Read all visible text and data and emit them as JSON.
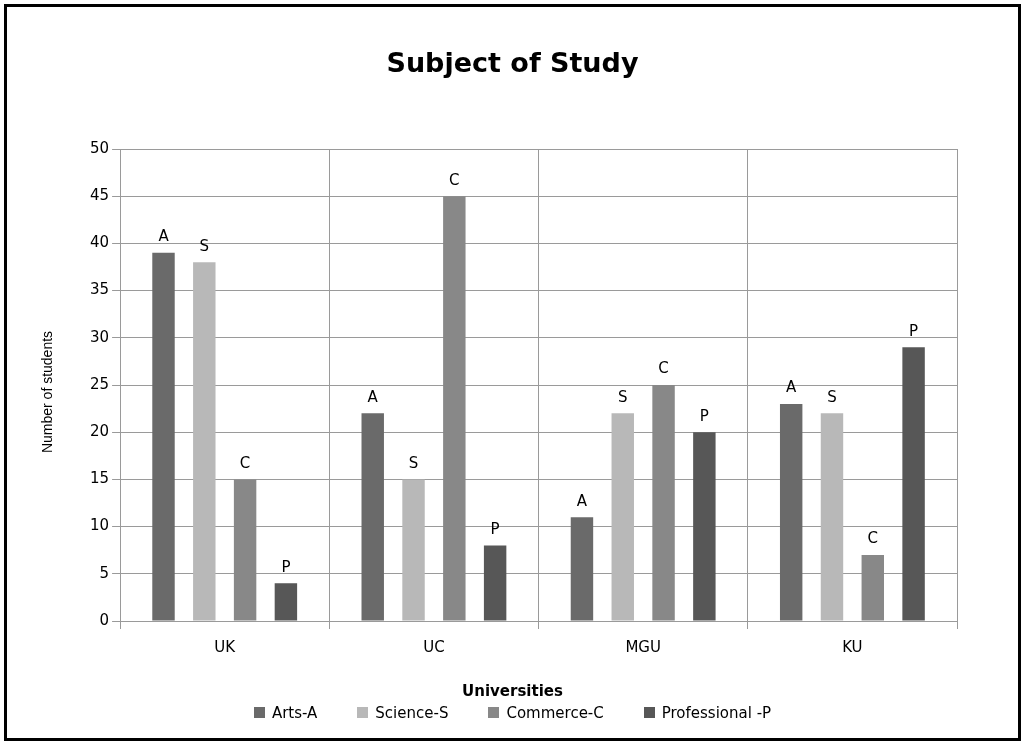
{
  "chart_data": {
    "type": "bar",
    "title": "Subject of Study",
    "xlabel": "Universities",
    "ylabel": "Number of students",
    "categories": [
      "UK",
      "UC",
      "MGU",
      "KU"
    ],
    "series": [
      {
        "name": "Arts-A",
        "color": "#6a6a6a",
        "values": [
          39,
          22,
          11,
          23
        ],
        "value_labels": [
          "A",
          "A",
          "A",
          "A"
        ]
      },
      {
        "name": "Science-S",
        "color": "#b8b8b8",
        "values": [
          38,
          15,
          22,
          22
        ],
        "value_labels": [
          "S",
          "S",
          "S",
          "S"
        ]
      },
      {
        "name": "Commerce-C",
        "color": "#888888",
        "values": [
          15,
          45,
          25,
          7
        ],
        "value_labels": [
          "C",
          "C",
          "C",
          "C"
        ]
      },
      {
        "name": "Professional -P",
        "color": "#575757",
        "values": [
          4,
          8,
          20,
          29
        ],
        "value_labels": [
          "P",
          "P",
          "P",
          "P"
        ]
      }
    ],
    "ylim": [
      0,
      50
    ],
    "yticks": [
      0,
      5,
      10,
      15,
      20,
      25,
      30,
      35,
      40,
      45,
      50
    ],
    "grid": true,
    "legend": "bottom"
  }
}
